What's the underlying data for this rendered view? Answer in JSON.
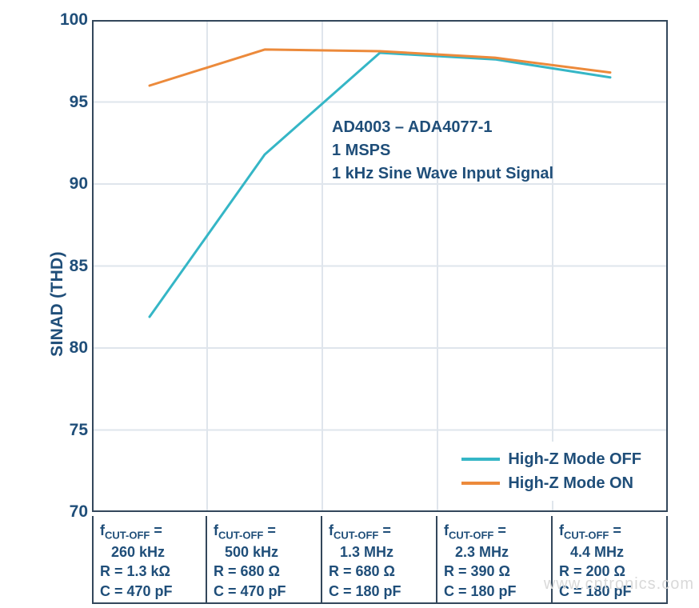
{
  "chart": {
    "type": "line",
    "ylabel": "SINAD (THD)",
    "label_fontsize": 21,
    "title_fontsize": 20,
    "background_color": "#ffffff",
    "grid_color": "#dfe5ec",
    "axis_color": "#33475b",
    "text_color": "#1f4e79",
    "ylim": [
      70,
      100
    ],
    "yticks": [
      70,
      75,
      80,
      85,
      90,
      95,
      100
    ],
    "x_categories": 5,
    "line_width": 3,
    "series": [
      {
        "name": "High-Z Mode OFF",
        "color": "#35b6c6",
        "values": [
          81.9,
          91.8,
          98.0,
          97.6,
          96.5
        ]
      },
      {
        "name": "High-Z Mode ON",
        "color": "#ec8a3b",
        "values": [
          96.0,
          98.2,
          98.1,
          97.7,
          96.8
        ]
      }
    ],
    "x_labels": [
      {
        "fcut_label": "f",
        "fcut_sub": "CUT-OFF",
        "fcut_eq": " =",
        "fcut_val": "260 kHz",
        "r": "R = 1.3 kΩ",
        "c": "C = 470 pF"
      },
      {
        "fcut_label": "f",
        "fcut_sub": "CUT-OFF",
        "fcut_eq": " =",
        "fcut_val": "500 kHz",
        "r": "R = 680 Ω",
        "c": "C = 470 pF"
      },
      {
        "fcut_label": "f",
        "fcut_sub": "CUT-OFF",
        "fcut_eq": " =",
        "fcut_val": "1.3 MHz",
        "r": "R = 680 Ω",
        "c": "C = 180 pF"
      },
      {
        "fcut_label": "f",
        "fcut_sub": "CUT-OFF",
        "fcut_eq": " =",
        "fcut_val": "2.3 MHz",
        "r": "R = 390 Ω",
        "c": "C = 180 pF"
      },
      {
        "fcut_label": "f",
        "fcut_sub": "CUT-OFF",
        "fcut_eq": " =",
        "fcut_val": "4.4 MHz",
        "r": "R = 200 Ω",
        "c": "C = 180 pF"
      }
    ],
    "annotation": {
      "line1": "AD4003 – ADA4077-1",
      "line2": "1 MSPS",
      "line3": "1 kHz Sine Wave Input Signal"
    },
    "legend": {
      "position": "bottom-right"
    },
    "watermark": "www.cntronics.com"
  }
}
